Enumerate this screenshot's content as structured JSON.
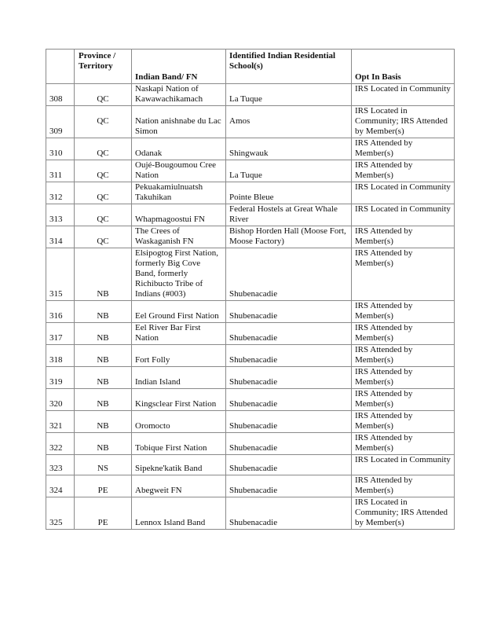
{
  "table": {
    "headers": [
      "",
      "Province / Territory",
      "Indian Band/ FN",
      "Identified Indian Residential School(s)",
      "Opt In Basis"
    ],
    "rows": [
      {
        "num": "308",
        "province": "QC",
        "band": "Naskapi Nation of Kawawachikamach",
        "school": "La Tuque",
        "basis": "IRS Located in Community"
      },
      {
        "num": "309",
        "province": "QC",
        "band": "Nation anishnabe du Lac Simon",
        "school": "Amos",
        "basis": "IRS Located in Community; IRS Attended by Member(s)"
      },
      {
        "num": "310",
        "province": "QC",
        "band": "Odanak",
        "school": "Shingwauk",
        "basis": "IRS Attended by Member(s)"
      },
      {
        "num": "311",
        "province": "QC",
        "band": "Oujé-Bougoumou Cree Nation",
        "school": "La Tuque",
        "basis": "IRS Attended by Member(s)"
      },
      {
        "num": "312",
        "province": "QC",
        "band": "Pekuakamiulnuatsh Takuhikan",
        "school": "Pointe Bleue",
        "basis": "IRS Located in Community"
      },
      {
        "num": "313",
        "province": "QC",
        "band": "Whapmagoostui FN",
        "school": "Federal Hostels at Great Whale River",
        "basis": "IRS Located in Community"
      },
      {
        "num": "314",
        "province": "QC",
        "band": "The Crees of Waskaganish FN",
        "school": "Bishop Horden Hall (Moose Fort, Moose Factory)",
        "basis": "IRS Attended by Member(s)"
      },
      {
        "num": "315",
        "province": "NB",
        "band": "Elsipogtog First Nation, formerly Big Cove Band, formerly Richibucto Tribe of Indians (#003)",
        "school": "Shubenacadie",
        "basis": "IRS Attended by Member(s)"
      },
      {
        "num": "316",
        "province": "NB",
        "band": "Eel Ground First Nation",
        "school": "Shubenacadie",
        "basis": "IRS Attended by Member(s)"
      },
      {
        "num": "317",
        "province": "NB",
        "band": "Eel River Bar First Nation",
        "school": "Shubenacadie",
        "basis": "IRS Attended by Member(s)"
      },
      {
        "num": "318",
        "province": "NB",
        "band": "Fort Folly",
        "school": "Shubenacadie",
        "basis": "IRS Attended by Member(s)"
      },
      {
        "num": "319",
        "province": "NB",
        "band": "Indian Island",
        "school": "Shubenacadie",
        "basis": "IRS Attended by Member(s)"
      },
      {
        "num": "320",
        "province": "NB",
        "band": "Kingsclear First Nation",
        "school": "Shubenacadie",
        "basis": "IRS Attended by Member(s)"
      },
      {
        "num": "321",
        "province": "NB",
        "band": "Oromocto",
        "school": "Shubenacadie",
        "basis": "IRS Attended by Member(s)"
      },
      {
        "num": "322",
        "province": "NB",
        "band": "Tobique First Nation",
        "school": "Shubenacadie",
        "basis": "IRS Attended by Member(s)"
      },
      {
        "num": "323",
        "province": "NS",
        "band": "Sipekne'katik Band",
        "school": "Shubenacadie",
        "basis": "IRS Located in Community"
      },
      {
        "num": "324",
        "province": "PE",
        "band": "Abegweit FN",
        "school": "Shubenacadie",
        "basis": "IRS Attended by Member(s)"
      },
      {
        "num": "325",
        "province": "PE",
        "band": "Lennox Island Band",
        "school": "Shubenacadie",
        "basis": "IRS Located in Community; IRS Attended by Member(s)"
      }
    ]
  }
}
